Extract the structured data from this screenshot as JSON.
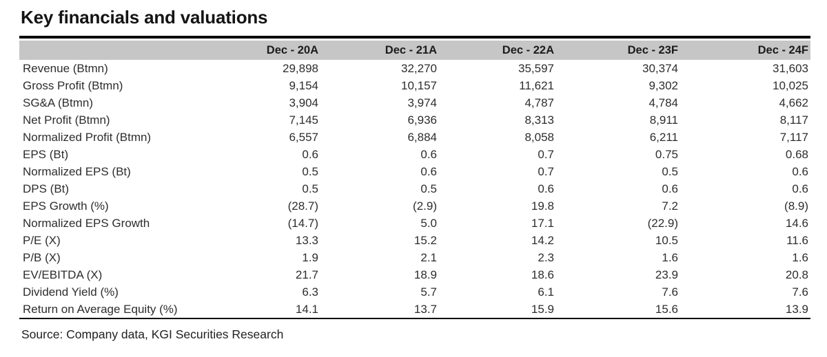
{
  "title": "Key financials and valuations",
  "source": "Source: Company data, KGI Securities Research",
  "colors": {
    "header_bg": "#c6c6c6",
    "rule": "#000000",
    "text": "#2d2d2d"
  },
  "table": {
    "columns": [
      "Dec - 20A",
      "Dec - 21A",
      "Dec - 22A",
      "Dec - 23F",
      "Dec - 24F"
    ],
    "rows": [
      {
        "label": "Revenue (Btmn)",
        "values": [
          "29,898",
          "32,270",
          "35,597",
          "30,374",
          "31,603"
        ]
      },
      {
        "label": "Gross Profit (Btmn)",
        "values": [
          "9,154",
          "10,157",
          "11,621",
          "9,302",
          "10,025"
        ]
      },
      {
        "label": "SG&A (Btmn)",
        "values": [
          "3,904",
          "3,974",
          "4,787",
          "4,784",
          "4,662"
        ]
      },
      {
        "label": "Net Profit (Btmn)",
        "values": [
          "7,145",
          "6,936",
          "8,313",
          "8,911",
          "8,117"
        ]
      },
      {
        "label": "Normalized Profit (Btmn)",
        "values": [
          "6,557",
          "6,884",
          "8,058",
          "6,211",
          "7,117"
        ]
      },
      {
        "label": "EPS (Bt)",
        "values": [
          "0.6",
          "0.6",
          "0.7",
          "0.75",
          "0.68"
        ]
      },
      {
        "label": "Normalized EPS (Bt)",
        "values": [
          "0.5",
          "0.6",
          "0.7",
          "0.5",
          "0.6"
        ]
      },
      {
        "label": "DPS (Bt)",
        "values": [
          "0.5",
          "0.5",
          "0.6",
          "0.6",
          "0.6"
        ]
      },
      {
        "label": "EPS Growth (%)",
        "values": [
          "(28.7)",
          "(2.9)",
          "19.8",
          "7.2",
          "(8.9)"
        ]
      },
      {
        "label": "Normalized EPS Growth",
        "values": [
          "(14.7)",
          "5.0",
          "17.1",
          "(22.9)",
          "14.6"
        ]
      },
      {
        "label": "P/E (X)",
        "values": [
          "13.3",
          "15.2",
          "14.2",
          "10.5",
          "11.6"
        ]
      },
      {
        "label": "P/B (X)",
        "values": [
          "1.9",
          "2.1",
          "2.3",
          "1.6",
          "1.6"
        ]
      },
      {
        "label": "EV/EBITDA (X)",
        "values": [
          "21.7",
          "18.9",
          "18.6",
          "23.9",
          "20.8"
        ]
      },
      {
        "label": "Dividend Yield (%)",
        "values": [
          "6.3",
          "5.7",
          "6.1",
          "7.6",
          "7.6"
        ]
      },
      {
        "label": "Return on Average Equity (%)",
        "values": [
          "14.1",
          "13.7",
          "15.9",
          "15.6",
          "13.9"
        ]
      }
    ]
  }
}
